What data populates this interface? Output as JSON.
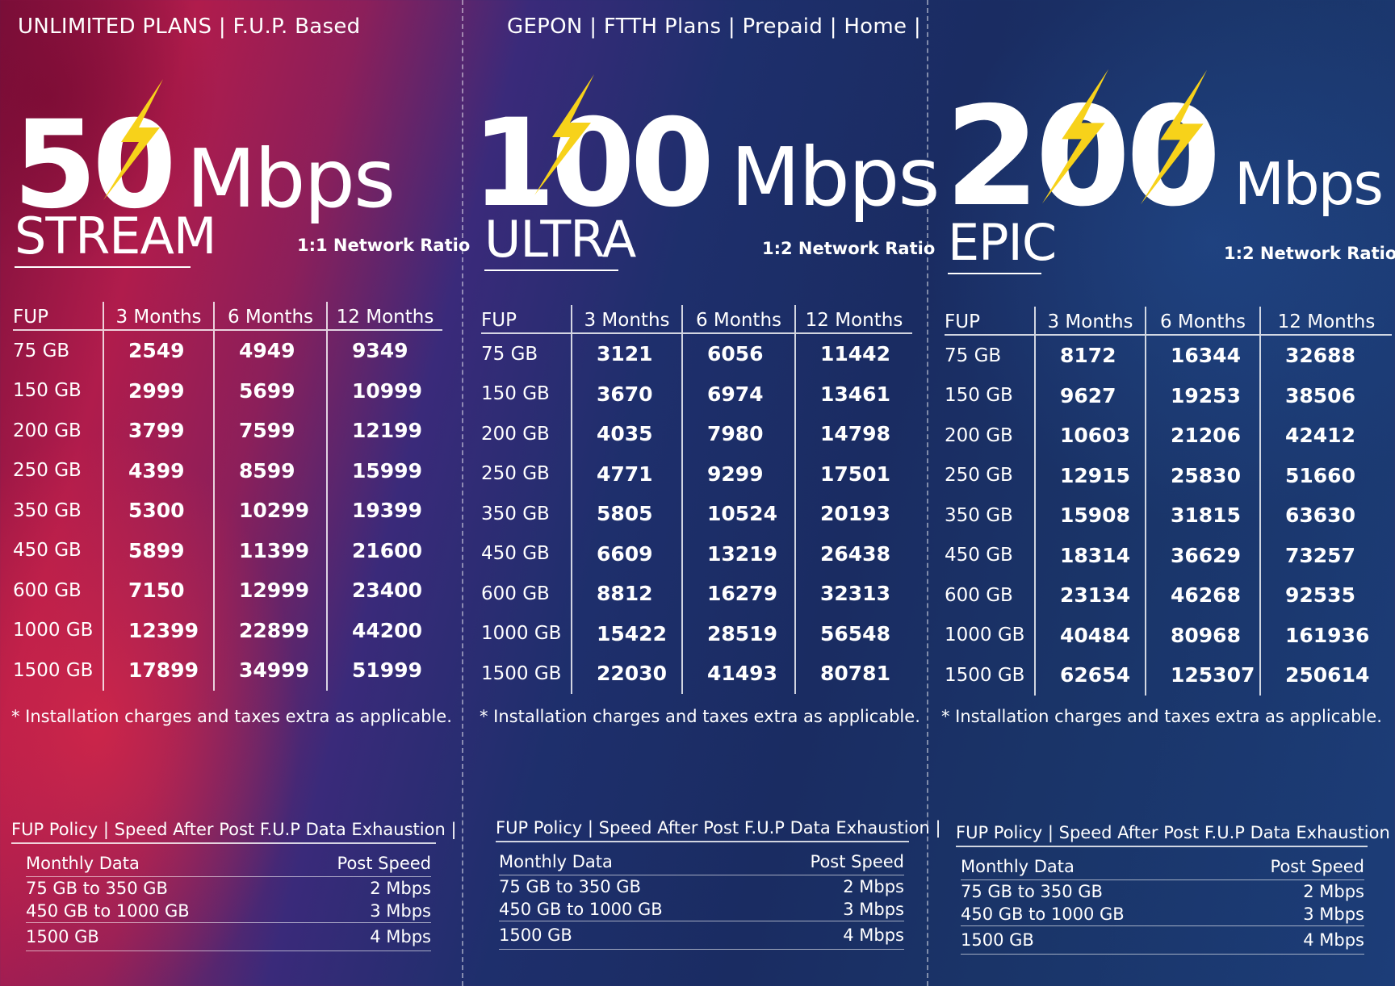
{
  "header": {
    "left": "UNLIMITED PLANS | F.U.P. Based",
    "center": "GEPON  | FTTH Plans | Prepaid | Home |"
  },
  "colors": {
    "bolt": "#f7d21a",
    "text": "#ffffff",
    "gradient_left": "#b01c4c",
    "gradient_right": "#1c3d78"
  },
  "icons": [
    "lightning-bolt-icon"
  ],
  "columns": [
    "FUP",
    "3 Months",
    "6 Months",
    "12 Months"
  ],
  "note": "* Installation charges and taxes extra as applicable.",
  "fup": {
    "title": "FUP Policy | Speed After Post F.U.P Data Exhaustion |",
    "col_left": "Monthly Data",
    "col_right": "Post Speed",
    "rows": [
      [
        "75 GB to 350 GB",
        "2 Mbps"
      ],
      [
        "450 GB to 1000 GB",
        "3 Mbps"
      ],
      [
        "1500 GB",
        "4 Mbps"
      ]
    ]
  },
  "plans": [
    {
      "speed": "50",
      "unit": "Mbps",
      "tier": "STREAM",
      "ratio": "1:1 Network Ratio",
      "rows": [
        [
          "75 GB",
          "2549",
          "4949",
          "9349"
        ],
        [
          "150 GB",
          "2999",
          "5699",
          "10999"
        ],
        [
          "200 GB",
          "3799",
          "7599",
          "12199"
        ],
        [
          "250 GB",
          "4399",
          "8599",
          "15999"
        ],
        [
          "350 GB",
          "5300",
          "10299",
          "19399"
        ],
        [
          "450 GB",
          "5899",
          "11399",
          "21600"
        ],
        [
          "600 GB",
          "7150",
          "12999",
          "23400"
        ],
        [
          "1000 GB",
          "12399",
          "22899",
          "44200"
        ],
        [
          "1500 GB",
          "17899",
          "34999",
          "51999"
        ]
      ]
    },
    {
      "speed": "100",
      "unit": "Mbps",
      "tier": "ULTRA",
      "ratio": "1:2 Network Ratio",
      "rows": [
        [
          "75 GB",
          "3121",
          "6056",
          "11442"
        ],
        [
          "150 GB",
          "3670",
          "6974",
          "13461"
        ],
        [
          "200 GB",
          "4035",
          "7980",
          "14798"
        ],
        [
          "250 GB",
          "4771",
          "9299",
          "17501"
        ],
        [
          "350 GB",
          "5805",
          "10524",
          "20193"
        ],
        [
          "450 GB",
          "6609",
          "13219",
          "26438"
        ],
        [
          "600 GB",
          "8812",
          "16279",
          "32313"
        ],
        [
          "1000 GB",
          "15422",
          "28519",
          "56548"
        ],
        [
          "1500 GB",
          "22030",
          "41493",
          "80781"
        ]
      ]
    },
    {
      "speed": "200",
      "unit": "Mbps",
      "tier": "EPIC",
      "ratio": "1:2 Network Ratio",
      "rows": [
        [
          "75 GB",
          "8172",
          "16344",
          "32688"
        ],
        [
          "150 GB",
          "9627",
          "19253",
          "38506"
        ],
        [
          "200 GB",
          "10603",
          "21206",
          "42412"
        ],
        [
          "250 GB",
          "12915",
          "25830",
          "51660"
        ],
        [
          "350 GB",
          "15908",
          "31815",
          "63630"
        ],
        [
          "450 GB",
          "18314",
          "36629",
          "73257"
        ],
        [
          "600 GB",
          "23134",
          "46268",
          "92535"
        ],
        [
          "1000 GB",
          "40484",
          "80968",
          "161936"
        ],
        [
          "1500 GB",
          "62654",
          "125307",
          "250614"
        ]
      ]
    }
  ]
}
